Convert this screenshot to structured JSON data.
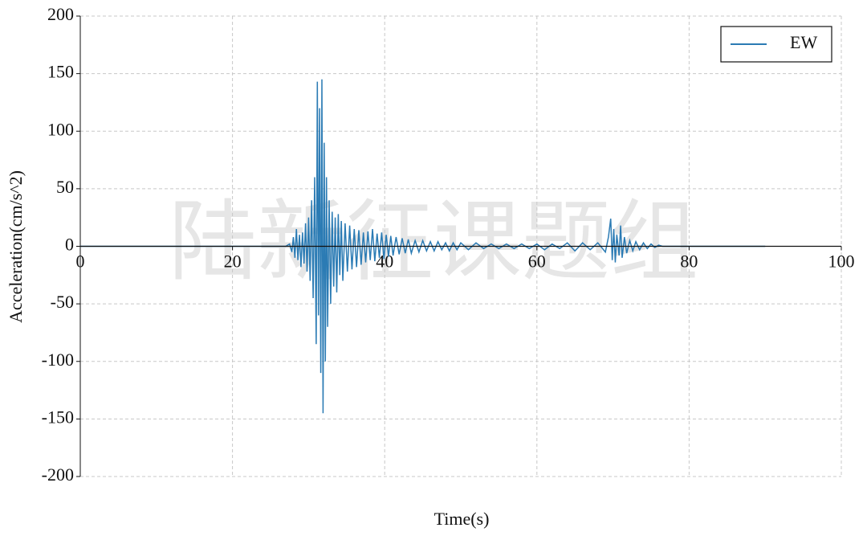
{
  "chart_data": {
    "type": "line",
    "xlabel": "Time(s)",
    "ylabel": "Acceleration(cm/s^2)",
    "watermark": "陆新征课题组",
    "xlim": [
      0,
      100
    ],
    "xticks": [
      0,
      20,
      40,
      60,
      80,
      100
    ],
    "ylim": [
      -200,
      200
    ],
    "yticks": [
      -200,
      -150,
      -100,
      -50,
      0,
      50,
      100,
      150,
      200
    ],
    "grid": true,
    "legend": "upper right",
    "x": [
      0,
      27,
      27.5,
      27.8,
      28.0,
      28.2,
      28.4,
      28.6,
      28.8,
      29.0,
      29.2,
      29.4,
      29.6,
      29.8,
      30.0,
      30.2,
      30.4,
      30.6,
      30.8,
      31.0,
      31.15,
      31.3,
      31.45,
      31.6,
      31.75,
      31.9,
      32.05,
      32.2,
      32.35,
      32.5,
      32.7,
      32.9,
      33.1,
      33.3,
      33.5,
      33.7,
      33.9,
      34.1,
      34.3,
      34.5,
      34.8,
      35.1,
      35.4,
      35.7,
      36.0,
      36.3,
      36.6,
      36.9,
      37.2,
      37.5,
      37.8,
      38.1,
      38.4,
      38.7,
      39.0,
      39.3,
      39.6,
      39.9,
      40.2,
      40.5,
      40.8,
      41.1,
      41.5,
      41.9,
      42.3,
      42.7,
      43.1,
      43.5,
      44,
      44.5,
      45,
      45.5,
      46,
      46.5,
      47,
      47.5,
      48,
      48.5,
      49,
      49.5,
      50,
      51,
      52,
      53,
      54,
      55,
      56,
      57,
      58,
      59,
      60,
      61,
      62,
      63,
      64,
      65,
      66,
      67,
      68,
      69,
      69.4,
      69.7,
      69.9,
      70.1,
      70.3,
      70.5,
      70.8,
      71.0,
      71.2,
      71.5,
      71.8,
      72.2,
      72.6,
      73,
      73.5,
      74,
      74.5,
      75,
      75.5,
      76,
      76.5,
      90
    ],
    "series": [
      {
        "name": "EW",
        "color": "#2b7bb4",
        "values": [
          0,
          0,
          2,
          -5,
          8,
          -10,
          15,
          -12,
          10,
          -18,
          12,
          -15,
          20,
          -22,
          25,
          -30,
          40,
          -45,
          60,
          -85,
          143,
          -60,
          120,
          -110,
          145,
          -145,
          90,
          -100,
          60,
          -70,
          40,
          -50,
          30,
          -35,
          25,
          -40,
          28,
          -25,
          22,
          -30,
          20,
          -22,
          18,
          -20,
          15,
          -18,
          14,
          -16,
          12,
          -14,
          13,
          -12,
          15,
          -13,
          11,
          -10,
          12,
          -11,
          10,
          -9,
          9,
          -8,
          8,
          -7,
          7,
          -6,
          6,
          -6,
          5,
          -5,
          5,
          -4,
          4,
          -4,
          4,
          -3,
          3,
          -4,
          3,
          -3,
          3,
          -3,
          3,
          -2,
          2,
          -2,
          2,
          -2,
          2,
          -2,
          2,
          -3,
          2,
          -2,
          3,
          -4,
          3,
          -3,
          3,
          -5,
          8,
          24,
          -12,
          15,
          -14,
          10,
          -8,
          18,
          -10,
          8,
          -6,
          5,
          -4,
          4,
          -3,
          3,
          -2,
          2,
          -1,
          1,
          0,
          0
        ]
      }
    ]
  }
}
